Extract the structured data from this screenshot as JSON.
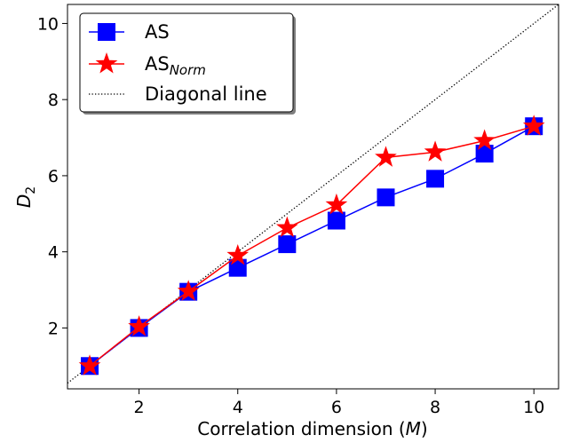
{
  "chart_data": {
    "type": "line",
    "xlabel": {
      "prefix": "Correlation dimension (",
      "var": "M",
      "suffix": ")"
    },
    "ylabel": {
      "base": "D",
      "sub": "2"
    },
    "xlim": [
      0.55,
      10.5
    ],
    "ylim": [
      0.4,
      10.5
    ],
    "xticks": [
      2,
      4,
      6,
      8,
      10
    ],
    "yticks": [
      2,
      4,
      6,
      8,
      10
    ],
    "grid": false,
    "legend_position": "top-left",
    "series": [
      {
        "name": "AS",
        "name_sub": "",
        "color": "#0000ff",
        "marker": "square",
        "x": [
          1,
          2,
          3,
          4,
          5,
          6,
          7,
          8,
          9,
          10
        ],
        "y": [
          1.0,
          2.0,
          2.95,
          3.58,
          4.2,
          4.82,
          5.43,
          5.92,
          6.58,
          7.3
        ]
      },
      {
        "name": "AS",
        "name_sub": "Norm",
        "color": "#ff0000",
        "marker": "star",
        "x": [
          1,
          2,
          3,
          4,
          5,
          6,
          7,
          8,
          9,
          10
        ],
        "y": [
          1.0,
          2.03,
          2.96,
          3.9,
          4.63,
          5.23,
          6.48,
          6.62,
          6.92,
          7.3
        ]
      }
    ],
    "reference_line": {
      "name": "Diagonal line",
      "style": "dotted",
      "color": "#000000"
    }
  }
}
